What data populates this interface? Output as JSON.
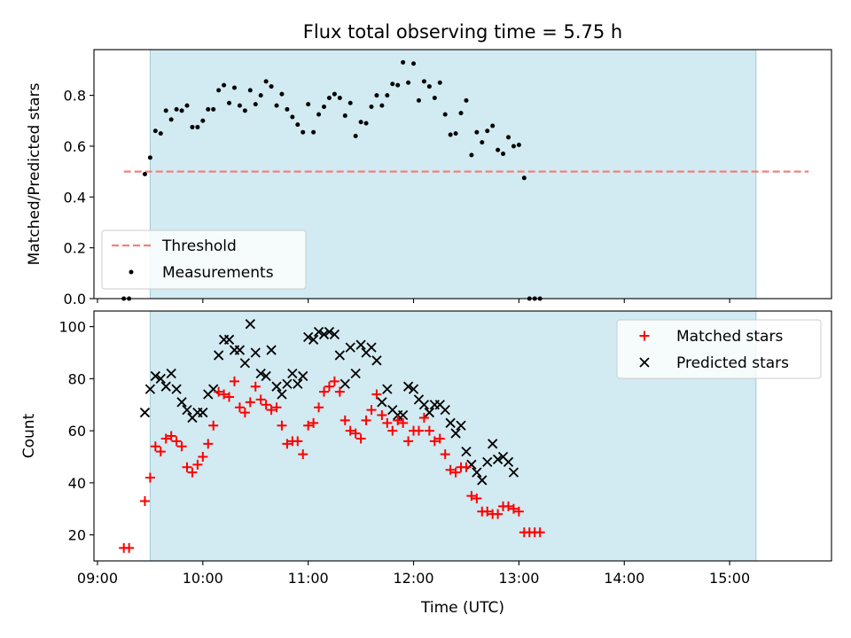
{
  "chart_data": [
    {
      "type": "scatter",
      "title": "Flux total observing time = 5.75 h",
      "xlabel": "",
      "ylabel": "Matched/Predicted stars",
      "ylim": [
        0,
        0.98
      ],
      "yticks": [
        "0.0",
        "0.2",
        "0.4",
        "0.6",
        "0.8"
      ],
      "xlim": [
        "08:58",
        "15:58"
      ],
      "shaded_span": [
        "09:30",
        "15:15"
      ],
      "shade_color": "#add8e6",
      "legend_position": "lower-left",
      "grid": false,
      "threshold": {
        "name": "Threshold",
        "value": 0.5,
        "x_range": [
          "09:15",
          "15:45"
        ],
        "color": "#f08080",
        "style": "dashed"
      },
      "series": [
        {
          "name": "Measurements",
          "marker": "dot",
          "color": "#000000",
          "points": [
            [
              "09:15",
              0.0
            ],
            [
              "09:18",
              0.0
            ],
            [
              "09:27",
              0.49
            ],
            [
              "09:30",
              0.555
            ],
            [
              "09:33",
              0.66
            ],
            [
              "09:36",
              0.65
            ],
            [
              "09:39",
              0.74
            ],
            [
              "09:42",
              0.705
            ],
            [
              "09:45",
              0.745
            ],
            [
              "09:48",
              0.74
            ],
            [
              "09:51",
              0.76
            ],
            [
              "09:54",
              0.675
            ],
            [
              "09:57",
              0.675
            ],
            [
              "10:00",
              0.7
            ],
            [
              "10:03",
              0.745
            ],
            [
              "10:06",
              0.745
            ],
            [
              "10:09",
              0.82
            ],
            [
              "10:12",
              0.84
            ],
            [
              "10:15",
              0.77
            ],
            [
              "10:18",
              0.83
            ],
            [
              "10:21",
              0.76
            ],
            [
              "10:24",
              0.74
            ],
            [
              "10:27",
              0.82
            ],
            [
              "10:30",
              0.765
            ],
            [
              "10:33",
              0.8
            ],
            [
              "10:36",
              0.855
            ],
            [
              "10:39",
              0.835
            ],
            [
              "10:42",
              0.76
            ],
            [
              "10:45",
              0.805
            ],
            [
              "10:48",
              0.745
            ],
            [
              "10:51",
              0.715
            ],
            [
              "10:54",
              0.685
            ],
            [
              "10:57",
              0.655
            ],
            [
              "11:00",
              0.765
            ],
            [
              "11:03",
              0.655
            ],
            [
              "11:06",
              0.725
            ],
            [
              "11:09",
              0.755
            ],
            [
              "11:12",
              0.79
            ],
            [
              "11:15",
              0.805
            ],
            [
              "11:18",
              0.79
            ],
            [
              "11:21",
              0.72
            ],
            [
              "11:24",
              0.77
            ],
            [
              "11:27",
              0.64
            ],
            [
              "11:30",
              0.695
            ],
            [
              "11:33",
              0.69
            ],
            [
              "11:36",
              0.755
            ],
            [
              "11:39",
              0.8
            ],
            [
              "11:42",
              0.76
            ],
            [
              "11:45",
              0.8
            ],
            [
              "11:48",
              0.845
            ],
            [
              "11:51",
              0.84
            ],
            [
              "11:54",
              0.93
            ],
            [
              "11:57",
              0.85
            ],
            [
              "12:00",
              0.925
            ],
            [
              "12:03",
              0.78
            ],
            [
              "12:06",
              0.855
            ],
            [
              "12:09",
              0.835
            ],
            [
              "12:12",
              0.79
            ],
            [
              "12:15",
              0.85
            ],
            [
              "12:18",
              0.725
            ],
            [
              "12:21",
              0.645
            ],
            [
              "12:24",
              0.65
            ],
            [
              "12:27",
              0.73
            ],
            [
              "12:30",
              0.78
            ],
            [
              "12:33",
              0.565
            ],
            [
              "12:36",
              0.655
            ],
            [
              "12:39",
              0.615
            ],
            [
              "12:42",
              0.66
            ],
            [
              "12:45",
              0.68
            ],
            [
              "12:48",
              0.585
            ],
            [
              "12:51",
              0.57
            ],
            [
              "12:54",
              0.635
            ],
            [
              "12:57",
              0.6
            ],
            [
              "13:00",
              0.605
            ],
            [
              "13:03",
              0.475
            ],
            [
              "13:06",
              0.0
            ],
            [
              "13:09",
              0.0
            ],
            [
              "13:12",
              0.0
            ]
          ]
        }
      ]
    },
    {
      "type": "scatter",
      "title": "",
      "xlabel": "Time (UTC)",
      "ylabel": "Count",
      "ylim": [
        10,
        106
      ],
      "yticks": [
        "20",
        "40",
        "60",
        "80",
        "100"
      ],
      "xlim": [
        "08:58",
        "15:58"
      ],
      "xticks": [
        "09:00",
        "10:00",
        "11:00",
        "12:00",
        "13:00",
        "14:00",
        "15:00"
      ],
      "shaded_span": [
        "09:30",
        "15:15"
      ],
      "shade_color": "#add8e6",
      "legend_position": "top-right",
      "grid": false,
      "series": [
        {
          "name": "Matched stars",
          "marker": "plus",
          "color": "#ff0000",
          "points": [
            [
              "09:15",
              15
            ],
            [
              "09:18",
              15
            ],
            [
              "09:27",
              33
            ],
            [
              "09:30",
              42
            ],
            [
              "09:33",
              54
            ],
            [
              "09:36",
              52
            ],
            [
              "09:39",
              57
            ],
            [
              "09:42",
              58
            ],
            [
              "09:45",
              56
            ],
            [
              "09:48",
              54
            ],
            [
              "09:51",
              46
            ],
            [
              "09:54",
              44
            ],
            [
              "09:57",
              47
            ],
            [
              "10:00",
              50
            ],
            [
              "10:03",
              55
            ],
            [
              "10:06",
              62
            ],
            [
              "10:09",
              75
            ],
            [
              "10:12",
              74
            ],
            [
              "10:15",
              73
            ],
            [
              "10:18",
              79
            ],
            [
              "10:21",
              69
            ],
            [
              "10:24",
              67
            ],
            [
              "10:27",
              71
            ],
            [
              "10:30",
              77
            ],
            [
              "10:33",
              72
            ],
            [
              "10:36",
              70
            ],
            [
              "10:39",
              68
            ],
            [
              "10:42",
              69
            ],
            [
              "10:45",
              62
            ],
            [
              "10:48",
              55
            ],
            [
              "10:51",
              56
            ],
            [
              "10:54",
              56
            ],
            [
              "10:57",
              51
            ],
            [
              "11:00",
              62
            ],
            [
              "11:03",
              63
            ],
            [
              "11:06",
              69
            ],
            [
              "11:09",
              75
            ],
            [
              "11:12",
              77
            ],
            [
              "11:15",
              79
            ],
            [
              "11:18",
              75
            ],
            [
              "11:21",
              64
            ],
            [
              "11:24",
              60
            ],
            [
              "11:27",
              59
            ],
            [
              "11:30",
              57
            ],
            [
              "11:33",
              64
            ],
            [
              "11:36",
              68
            ],
            [
              "11:39",
              74
            ],
            [
              "11:42",
              66
            ],
            [
              "11:45",
              63
            ],
            [
              "11:48",
              60
            ],
            [
              "11:51",
              64
            ],
            [
              "11:54",
              63
            ],
            [
              "11:57",
              56
            ],
            [
              "12:00",
              60
            ],
            [
              "12:03",
              60
            ],
            [
              "12:06",
              65
            ],
            [
              "12:09",
              60
            ],
            [
              "12:12",
              56
            ],
            [
              "12:15",
              57
            ],
            [
              "12:18",
              51
            ],
            [
              "12:21",
              45
            ],
            [
              "12:24",
              44
            ],
            [
              "12:27",
              46
            ],
            [
              "12:30",
              46
            ],
            [
              "12:33",
              35
            ],
            [
              "12:36",
              34
            ],
            [
              "12:39",
              29
            ],
            [
              "12:42",
              29
            ],
            [
              "12:45",
              28
            ],
            [
              "12:48",
              28
            ],
            [
              "12:51",
              31
            ],
            [
              "12:54",
              31
            ],
            [
              "12:57",
              30
            ],
            [
              "13:00",
              29
            ],
            [
              "13:03",
              21
            ],
            [
              "13:06",
              21
            ],
            [
              "13:09",
              21
            ],
            [
              "13:12",
              21
            ]
          ]
        },
        {
          "name": "Predicted stars",
          "marker": "x",
          "color": "#000000",
          "points": [
            [
              "09:27",
              67
            ],
            [
              "09:30",
              76
            ],
            [
              "09:33",
              81
            ],
            [
              "09:36",
              80
            ],
            [
              "09:39",
              77
            ],
            [
              "09:42",
              82
            ],
            [
              "09:45",
              76
            ],
            [
              "09:48",
              71
            ],
            [
              "09:51",
              68
            ],
            [
              "09:54",
              65
            ],
            [
              "09:57",
              67
            ],
            [
              "10:00",
              67
            ],
            [
              "10:03",
              74
            ],
            [
              "10:06",
              76
            ],
            [
              "10:09",
              89
            ],
            [
              "10:12",
              95
            ],
            [
              "10:15",
              95
            ],
            [
              "10:18",
              91
            ],
            [
              "10:21",
              91
            ],
            [
              "10:24",
              86
            ],
            [
              "10:27",
              101
            ],
            [
              "10:30",
              90
            ],
            [
              "10:33",
              82
            ],
            [
              "10:36",
              81
            ],
            [
              "10:39",
              91
            ],
            [
              "10:42",
              77
            ],
            [
              "10:45",
              74
            ],
            [
              "10:48",
              78
            ],
            [
              "10:51",
              82
            ],
            [
              "10:54",
              78
            ],
            [
              "10:57",
              81
            ],
            [
              "11:00",
              96
            ],
            [
              "11:03",
              95
            ],
            [
              "11:06",
              98
            ],
            [
              "11:09",
              97
            ],
            [
              "11:12",
              98
            ],
            [
              "11:15",
              97
            ],
            [
              "11:18",
              89
            ],
            [
              "11:21",
              78
            ],
            [
              "11:24",
              92
            ],
            [
              "11:27",
              82
            ],
            [
              "11:30",
              93
            ],
            [
              "11:33",
              90
            ],
            [
              "11:36",
              92
            ],
            [
              "11:39",
              87
            ],
            [
              "11:42",
              71
            ],
            [
              "11:45",
              76
            ],
            [
              "11:48",
              68
            ],
            [
              "11:51",
              66
            ],
            [
              "11:54",
              66
            ],
            [
              "11:57",
              77
            ],
            [
              "12:00",
              76
            ],
            [
              "12:03",
              72
            ],
            [
              "12:06",
              70
            ],
            [
              "12:09",
              67
            ],
            [
              "12:12",
              70
            ],
            [
              "12:15",
              70
            ],
            [
              "12:18",
              68
            ],
            [
              "12:21",
              63
            ],
            [
              "12:24",
              59
            ],
            [
              "12:27",
              62
            ],
            [
              "12:30",
              52
            ],
            [
              "12:33",
              47
            ],
            [
              "12:36",
              44
            ],
            [
              "12:39",
              41
            ],
            [
              "12:42",
              48
            ],
            [
              "12:45",
              55
            ],
            [
              "12:48",
              49
            ],
            [
              "12:51",
              50
            ],
            [
              "12:54",
              48
            ],
            [
              "12:57",
              44
            ]
          ]
        }
      ]
    }
  ]
}
